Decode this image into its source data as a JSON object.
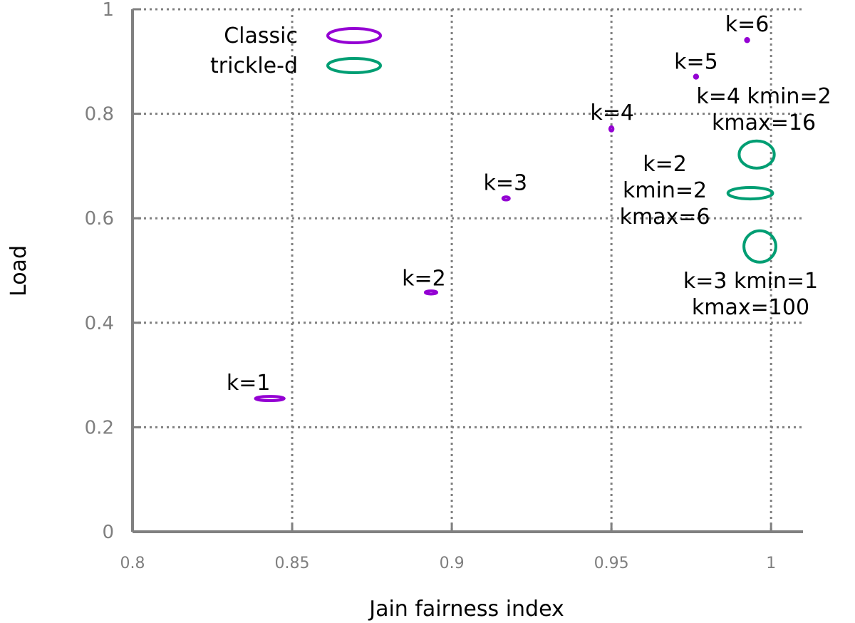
{
  "chart_data": {
    "type": "scatter",
    "xlabel": "Jain fairness index",
    "ylabel": "Load",
    "xlim": [
      0.8,
      1.01
    ],
    "ylim": [
      0,
      1
    ],
    "x_ticks": [
      "0.8",
      "0.85",
      "0.9",
      "0.95",
      "1"
    ],
    "x_tick_values": [
      0.8,
      0.85,
      0.9,
      0.95,
      1.0
    ],
    "y_ticks": [
      "0",
      "0.2",
      "0.4",
      "0.6",
      "0.8",
      "1"
    ],
    "y_tick_values": [
      0,
      0.2,
      0.4,
      0.6,
      0.8,
      1.0
    ],
    "grid": true,
    "legend_position": "top-left",
    "series": [
      {
        "name": "Classic",
        "color": "#9400d3",
        "marker": "ellipse",
        "points": [
          {
            "x": 0.843,
            "y": 0.255,
            "rx": 0.0045,
            "ry": 0.004,
            "label": "k=1"
          },
          {
            "x": 0.8935,
            "y": 0.458,
            "rx": 0.0018,
            "ry": 0.003,
            "label": "k=2"
          },
          {
            "x": 0.917,
            "y": 0.638,
            "rx": 0.001,
            "ry": 0.003,
            "label": "k=3"
          },
          {
            "x": 0.95,
            "y": 0.771,
            "rx": 0.0005,
            "ry": 0.004,
            "label": "k=4"
          },
          {
            "x": 0.9765,
            "y": 0.871,
            "rx": 0.0004,
            "ry": 0.003,
            "label": "k=5"
          },
          {
            "x": 0.9925,
            "y": 0.941,
            "rx": 0.0004,
            "ry": 0.003,
            "label": "k=6"
          }
        ]
      },
      {
        "name": "trickle-d",
        "color": "#009e73",
        "marker": "ellipse",
        "points": [
          {
            "x": 0.9935,
            "y": 0.648,
            "rx": 0.007,
            "ry": 0.011,
            "label": "k=2\nkmin=2\nkmax=6"
          },
          {
            "x": 0.9955,
            "y": 0.722,
            "rx": 0.0055,
            "ry": 0.026,
            "label": "k=4 kmin=2\nkmax=16"
          },
          {
            "x": 0.9965,
            "y": 0.546,
            "rx": 0.005,
            "ry": 0.03,
            "label": "k=3 kmin=1\nkmax=100"
          }
        ]
      }
    ]
  }
}
